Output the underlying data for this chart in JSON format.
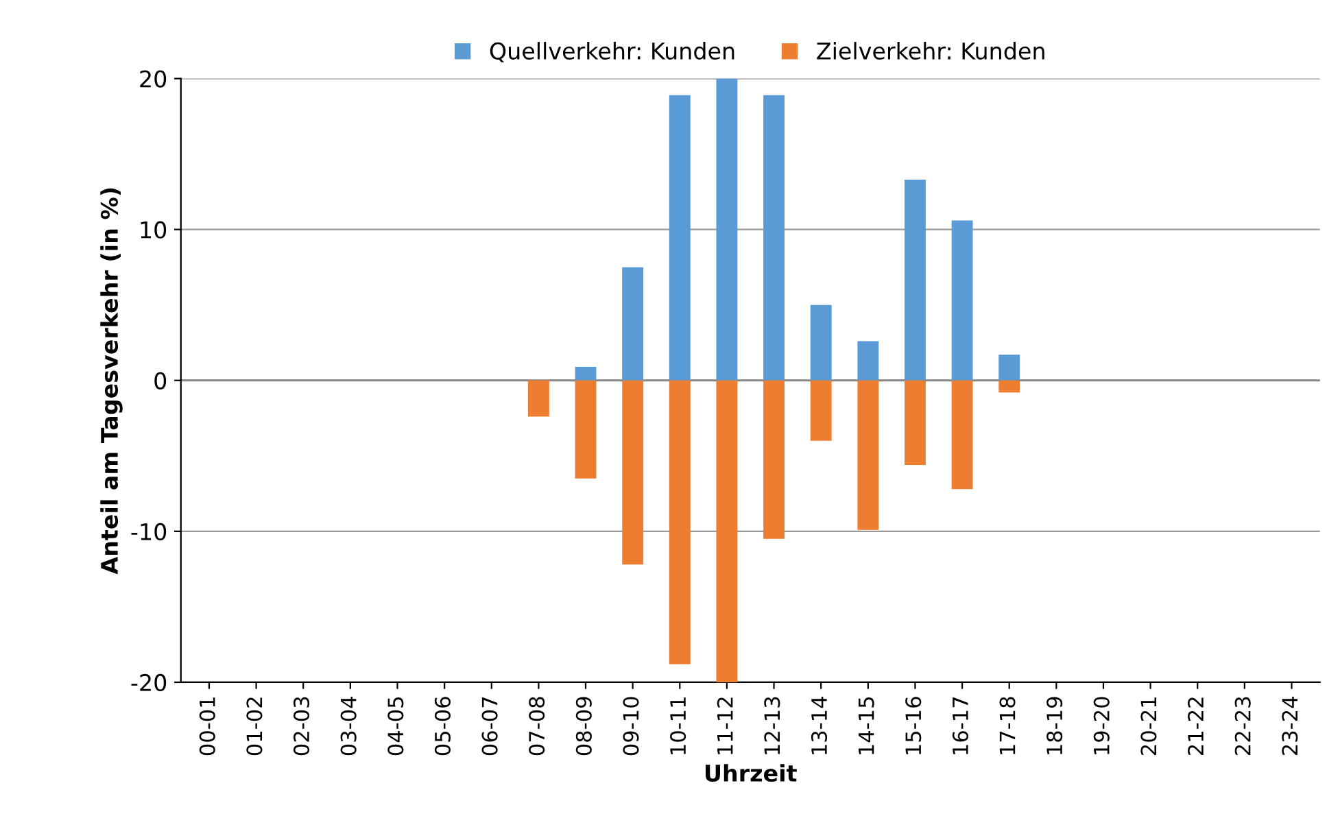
{
  "chart_data": {
    "type": "bar",
    "xlabel": "Uhrzeit",
    "ylabel": "Anteil am Tagesverkehr (in %)",
    "categories": [
      "00-01",
      "01-02",
      "02-03",
      "03-04",
      "04-05",
      "05-06",
      "06-07",
      "07-08",
      "08-09",
      "09-10",
      "10-11",
      "11-12",
      "12-13",
      "13-14",
      "14-15",
      "15-16",
      "16-17",
      "17-18",
      "18-19",
      "19-20",
      "20-21",
      "21-22",
      "22-23",
      "23-24"
    ],
    "series": [
      {
        "name": "Quellverkehr: Kunden",
        "color": "#5b9bd5",
        "values": [
          0,
          0,
          0,
          0,
          0,
          0,
          0,
          0,
          0.9,
          7.5,
          18.9,
          20,
          18.9,
          5.0,
          2.6,
          13.3,
          10.6,
          1.7,
          0,
          0,
          0,
          0,
          0,
          0
        ]
      },
      {
        "name": "Zielverkehr: Kunden",
        "color": "#ed7d31",
        "values": [
          0,
          0,
          0,
          0,
          0,
          0,
          0,
          -2.4,
          -6.5,
          -12.2,
          -18.8,
          -20,
          -10.5,
          -4.0,
          -9.9,
          -5.6,
          -7.2,
          -0.8,
          0,
          0,
          0,
          0,
          0,
          0
        ]
      }
    ],
    "ylim": [
      -20,
      20
    ],
    "yticks": [
      -20,
      -10,
      0,
      10,
      20
    ],
    "grid": "y",
    "legend": "top"
  }
}
